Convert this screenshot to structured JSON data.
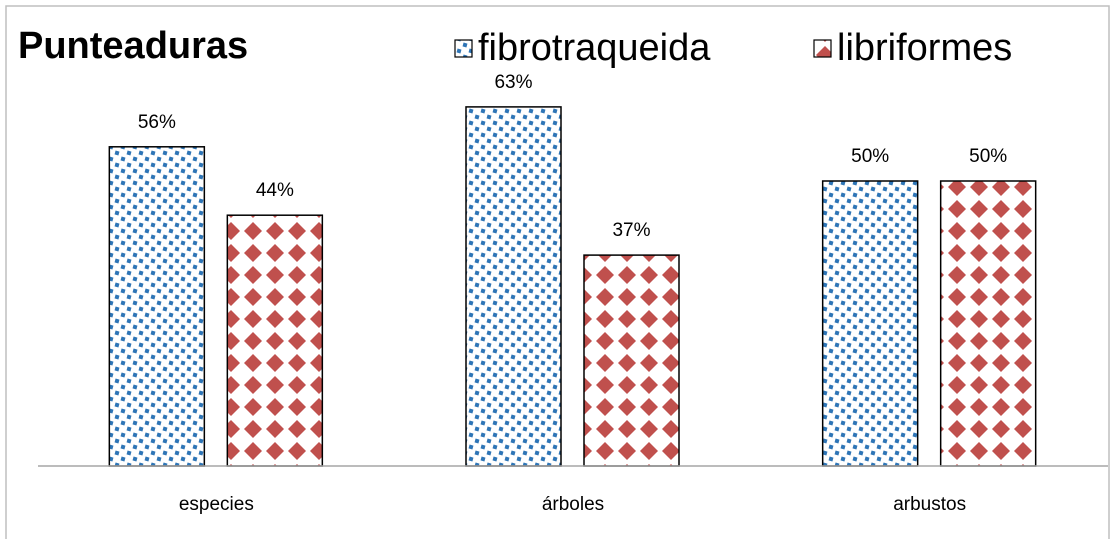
{
  "chart_data": {
    "type": "bar",
    "title": "Punteaduras",
    "categories": [
      "especies",
      "árboles",
      "arbustos"
    ],
    "series": [
      {
        "name": "fibrotraqueida",
        "color": "#2e75b6",
        "values": [
          56,
          63,
          50
        ],
        "value_labels": [
          "56%",
          "63%",
          "50%"
        ]
      },
      {
        "name": "libriformes",
        "color": "#c0504d",
        "values": [
          44,
          37,
          50
        ],
        "value_labels": [
          "44%",
          "37%",
          "50%"
        ]
      }
    ],
    "ylim": [
      0,
      70
    ],
    "legend": "top"
  }
}
